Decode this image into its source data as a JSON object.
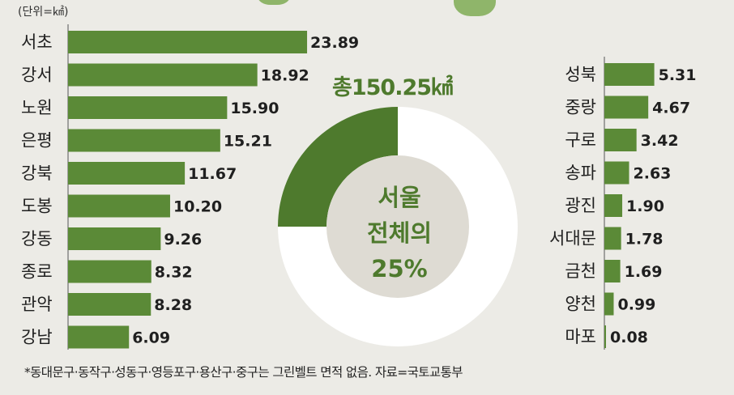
{
  "unit_label": "(단위=㎢)",
  "total_label": "총150.25㎢",
  "center_lines": [
    "서울",
    "전체의",
    "25%"
  ],
  "footnote": "*동대문구·동작구·성동구·영등포구·용산구·중구는 그린벨트 면적 없음. 자료=국토교통부",
  "colors": {
    "bar": "#5b8a37",
    "donut_fill": "#4e7a2d",
    "donut_empty": "#ffffff",
    "inner": "#dedbd3",
    "accent": "#4e7a2d"
  },
  "chart_data": {
    "type": "bar",
    "unit": "㎢",
    "left": {
      "categories": [
        "서초",
        "강서",
        "노원",
        "은평",
        "강북",
        "도봉",
        "강동",
        "종로",
        "관악",
        "강남"
      ],
      "values": [
        23.89,
        18.92,
        15.9,
        15.21,
        11.67,
        10.2,
        9.26,
        8.32,
        8.28,
        6.09
      ],
      "labels": [
        "23.89",
        "18.92",
        "15.90",
        "15.21",
        "11.67",
        "10.20",
        "9.26",
        "8.32",
        "8.28",
        "6.09"
      ]
    },
    "right": {
      "categories": [
        "성북",
        "중랑",
        "구로",
        "송파",
        "광진",
        "서대문",
        "금천",
        "양천",
        "마포"
      ],
      "values": [
        5.31,
        4.67,
        3.42,
        2.63,
        1.9,
        1.78,
        1.69,
        0.99,
        0.08
      ],
      "labels": [
        "5.31",
        "4.67",
        "3.42",
        "2.63",
        "1.90",
        "1.78",
        "1.69",
        "0.99",
        "0.08"
      ]
    },
    "donut": {
      "total": 150.25,
      "share_percent": 25
    }
  }
}
